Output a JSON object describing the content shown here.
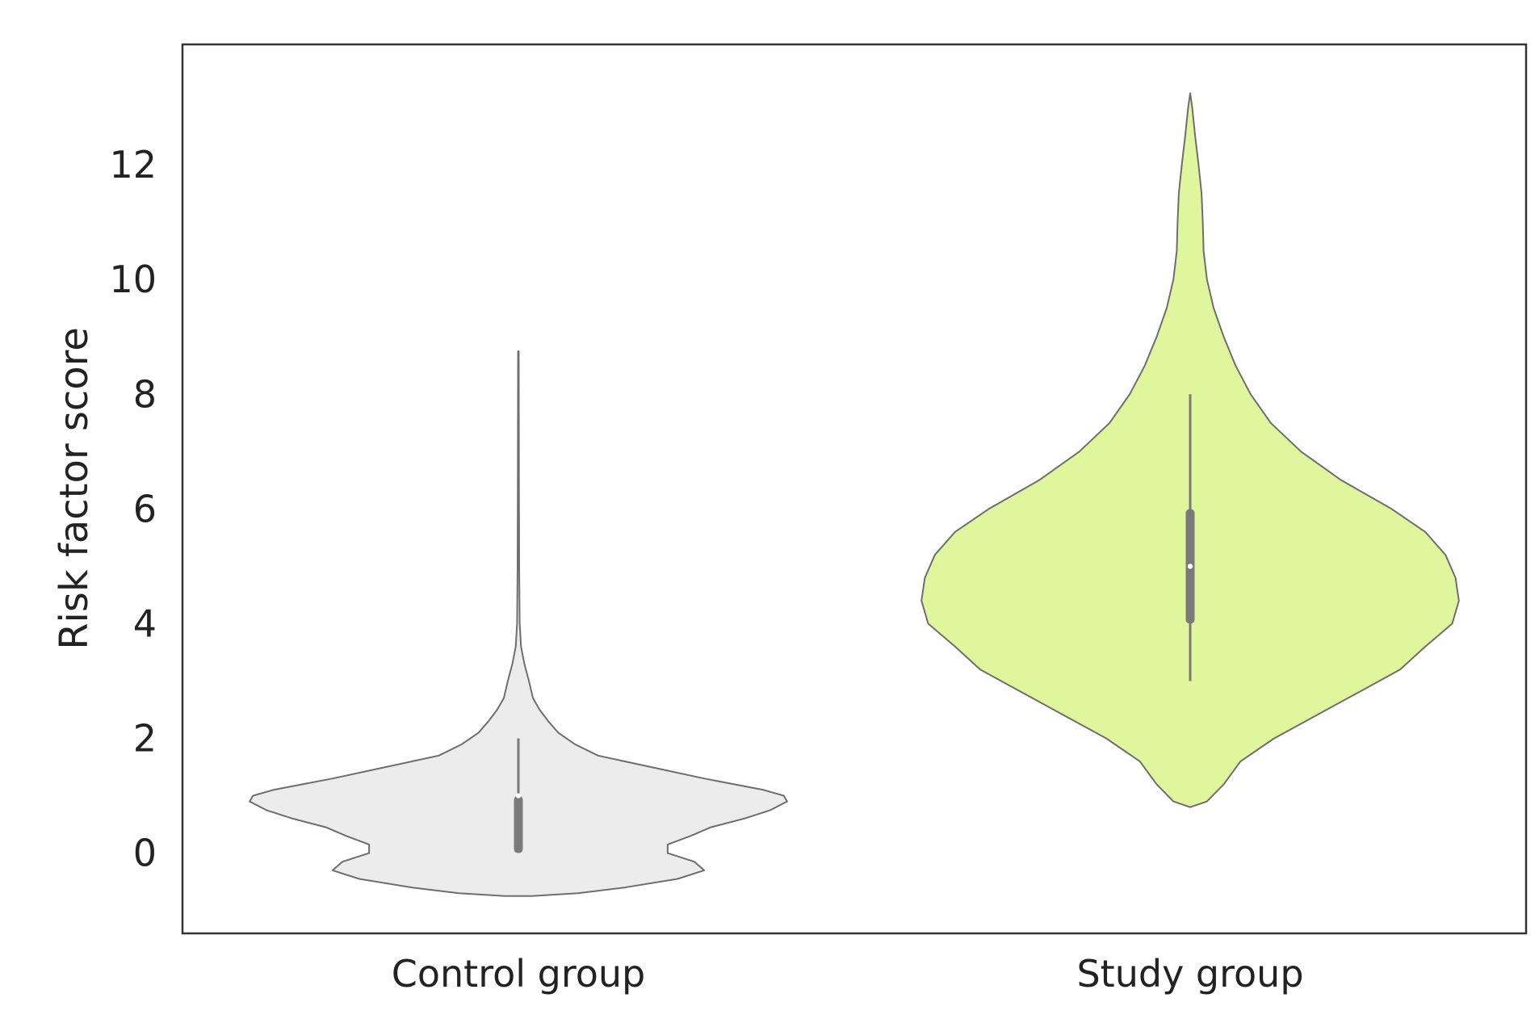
{
  "chart_data": {
    "type": "violin",
    "title": "",
    "xlabel": "",
    "ylabel": "Risk factor score",
    "ylim": [
      -1.4,
      14.1
    ],
    "yticks": [
      0,
      2,
      4,
      6,
      8,
      10,
      12
    ],
    "ytick_labels": [
      "0",
      "2",
      "4",
      "6",
      "8",
      "10",
      "12"
    ],
    "categories": [
      "Control group",
      "Study group"
    ],
    "grid": false,
    "series": [
      {
        "category": "Control group",
        "color": "#ececec",
        "edge_color": "#6e6e6e",
        "kde_max_halfwidth": 0.4,
        "kde": [
          [
            -0.75,
            0.02
          ],
          [
            -0.7,
            0.09
          ],
          [
            -0.6,
            0.16
          ],
          [
            -0.45,
            0.24
          ],
          [
            -0.3,
            0.28
          ],
          [
            -0.15,
            0.265
          ],
          [
            0.0,
            0.225
          ],
          [
            0.15,
            0.225
          ],
          [
            0.3,
            0.26
          ],
          [
            0.45,
            0.29
          ],
          [
            0.6,
            0.34
          ],
          [
            0.75,
            0.38
          ],
          [
            0.9,
            0.405
          ],
          [
            1.0,
            0.4
          ],
          [
            1.1,
            0.37
          ],
          [
            1.3,
            0.28
          ],
          [
            1.5,
            0.2
          ],
          [
            1.7,
            0.12
          ],
          [
            1.9,
            0.085
          ],
          [
            2.1,
            0.06
          ],
          [
            2.3,
            0.045
          ],
          [
            2.5,
            0.032
          ],
          [
            2.7,
            0.022
          ],
          [
            3.0,
            0.016
          ],
          [
            3.3,
            0.009
          ],
          [
            3.6,
            0.004
          ],
          [
            4.0,
            0.002
          ],
          [
            5.0,
            0.0012
          ],
          [
            6.5,
            0.0008
          ],
          [
            8.75,
            0.0005
          ]
        ],
        "box": {
          "q1": 0,
          "median": 1,
          "q3": 1,
          "whisker_low": 0,
          "whisker_high": 2
        }
      },
      {
        "category": "Study group",
        "color": "#e1f59c",
        "edge_color": "#6e6e6e",
        "kde_max_halfwidth": 0.4,
        "kde": [
          [
            0.8,
            0.0
          ],
          [
            0.9,
            0.01
          ],
          [
            1.2,
            0.02
          ],
          [
            1.6,
            0.03
          ],
          [
            2.0,
            0.05
          ],
          [
            2.4,
            0.075
          ],
          [
            2.8,
            0.1
          ],
          [
            3.2,
            0.125
          ],
          [
            3.6,
            0.14
          ],
          [
            4.0,
            0.156
          ],
          [
            4.4,
            0.16
          ],
          [
            4.8,
            0.158
          ],
          [
            5.2,
            0.152
          ],
          [
            5.6,
            0.14
          ],
          [
            6.0,
            0.12
          ],
          [
            6.5,
            0.09
          ],
          [
            7.0,
            0.066
          ],
          [
            7.5,
            0.048
          ],
          [
            8.0,
            0.036
          ],
          [
            8.5,
            0.027
          ],
          [
            9.0,
            0.02
          ],
          [
            9.5,
            0.014
          ],
          [
            10.0,
            0.01
          ],
          [
            10.5,
            0.008
          ],
          [
            11.0,
            0.0075
          ],
          [
            11.5,
            0.0068
          ],
          [
            12.0,
            0.005
          ],
          [
            12.5,
            0.003
          ],
          [
            13.0,
            0.0012
          ],
          [
            13.25,
            0.0
          ]
        ],
        "box": {
          "q1": 4,
          "median": 5,
          "q3": 6,
          "whisker_low": 3,
          "whisker_high": 8
        }
      }
    ]
  }
}
